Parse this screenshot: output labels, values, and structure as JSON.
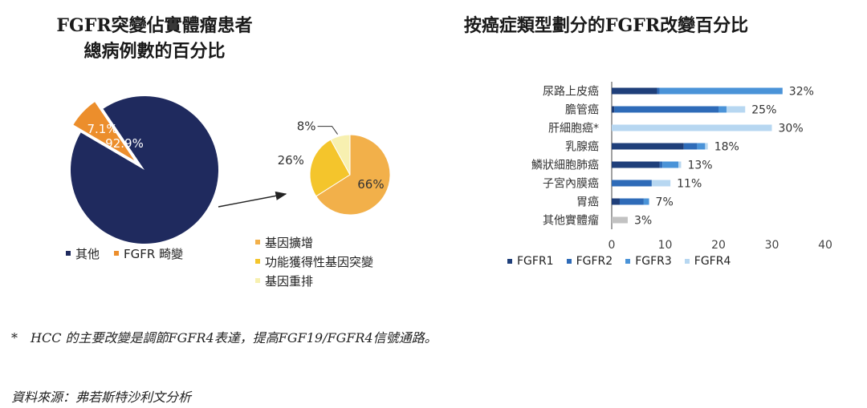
{
  "left_title": {
    "line1": "FGFR突變佔實體瘤患者",
    "line2": "總病例數的百分比"
  },
  "right_title": "按癌症類型劃分的FGFR改變百分比",
  "footnote": "*　HCC 的主要改變是調節FGFR4表達，提高FGF19/FGFR4信號通路。",
  "source": "資料來源：弗若斯特沙利文分析",
  "chart_data": [
    {
      "type": "pie",
      "slices": [
        {
          "label": "其他",
          "value": 92.9,
          "display": "92.9%",
          "color": "#1f2a5e"
        },
        {
          "label": "FGFR 畸變",
          "value": 7.1,
          "display": "7.1%",
          "color": "#ec8e2c"
        }
      ],
      "legend": [
        "其他",
        "FGFR 畸變"
      ]
    },
    {
      "type": "pie",
      "slices": [
        {
          "label": "基因擴增",
          "value": 66,
          "display": "66%",
          "color": "#f2b04a"
        },
        {
          "label": "功能獲得性基因突變",
          "value": 26,
          "display": "26%",
          "color": "#f4c52c"
        },
        {
          "label": "基因重排",
          "value": 8,
          "display": "8%",
          "color": "#f7f0b0"
        }
      ],
      "legend": [
        "基因擴增",
        "功能獲得性基因突變",
        "基因重排"
      ]
    },
    {
      "type": "bar",
      "orientation": "horizontal",
      "stacked": true,
      "categories": [
        "尿路上皮癌",
        "膽管癌",
        "肝細胞癌*",
        "乳腺癌",
        "鱗狀細胞肺癌",
        "子宮內膜癌",
        "胃癌",
        "其他實體瘤"
      ],
      "series": [
        {
          "name": "FGFR1",
          "color": "#1f3f7a",
          "values": [
            8.5,
            0.5,
            0,
            13.5,
            9,
            0,
            1.5,
            0
          ]
        },
        {
          "name": "FGFR2",
          "color": "#2e6bb8",
          "values": [
            0.5,
            19.5,
            0,
            2.5,
            0.5,
            7.5,
            4.5,
            0
          ]
        },
        {
          "name": "FGFR3",
          "color": "#4a93d8",
          "values": [
            23,
            1.5,
            0,
            1.5,
            3,
            0,
            1,
            0
          ]
        },
        {
          "name": "FGFR4",
          "color": "#b7d7f1",
          "values": [
            0,
            3.5,
            30,
            0.5,
            0.5,
            3.5,
            0,
            0
          ]
        },
        {
          "name": "",
          "color": "#c2c2c2",
          "values": [
            0,
            0,
            0,
            0,
            0,
            0,
            0,
            3
          ]
        }
      ],
      "totals": [
        "32%",
        "25%",
        "30%",
        "18%",
        "13%",
        "11%",
        "7%",
        "3%"
      ],
      "xlim": [
        0,
        40
      ],
      "xticks": [
        0,
        10,
        20,
        30,
        40
      ],
      "grid": false,
      "legend_position": "bottom"
    }
  ]
}
